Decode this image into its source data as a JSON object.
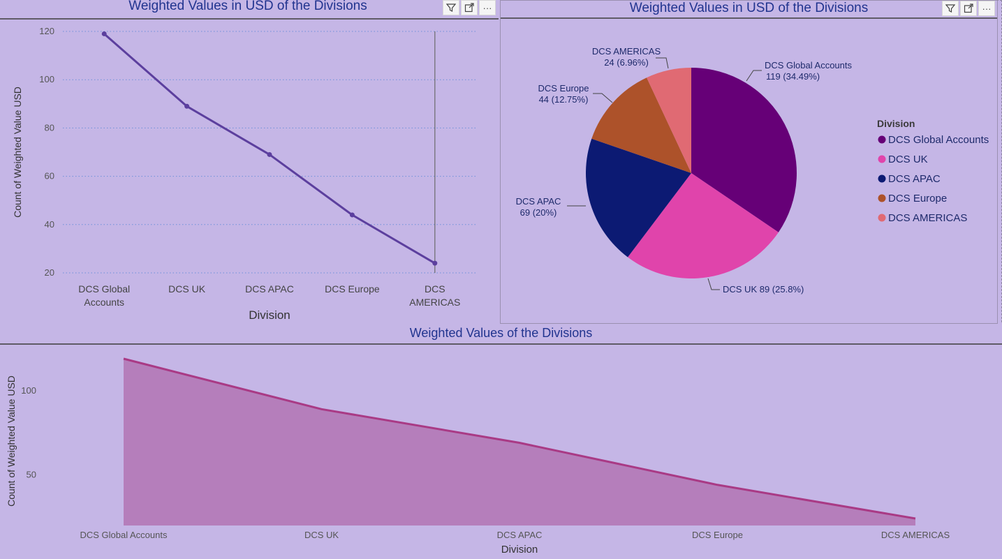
{
  "panels": {
    "line": {
      "title": "Weighted Values in USD of the Divisions",
      "toolbar": {
        "filter_icon": "filter-icon",
        "focus_icon": "focus-mode-icon",
        "more_icon": "more-options-icon",
        "more_label": "···"
      }
    },
    "pie": {
      "title": "Weighted Values in USD of the Divisions",
      "toolbar": {
        "filter_icon": "filter-icon",
        "focus_icon": "focus-mode-icon",
        "more_icon": "more-options-icon",
        "more_label": "···"
      }
    },
    "area": {
      "title": "Weighted Values of the Divisions"
    }
  },
  "chart_data": [
    {
      "type": "line",
      "title": "Weighted Values in USD of the Divisions",
      "xlabel": "Division",
      "ylabel": "Count of Weighted Value USD",
      "categories": [
        [
          "DCS Global",
          "Accounts"
        ],
        [
          "DCS UK"
        ],
        [
          "DCS APAC"
        ],
        [
          "DCS Europe"
        ],
        [
          "DCS",
          "AMERICAS"
        ]
      ],
      "values": [
        119,
        89,
        69,
        44,
        24
      ],
      "yticks": [
        20,
        40,
        60,
        80,
        100,
        120
      ],
      "ylim": [
        20,
        120
      ],
      "grid": true,
      "color": "#5c3f9e"
    },
    {
      "type": "pie",
      "title": "Weighted Values in USD of the Divisions",
      "legend_title": "Division",
      "legend_position": "right",
      "slices": [
        {
          "name": "DCS Global Accounts",
          "value": 119,
          "label_lines": [
            "DCS Global Accounts",
            "119 (34.49%)"
          ],
          "color": "#660077"
        },
        {
          "name": "DCS UK",
          "value": 89,
          "label_lines": [
            "DCS UK 89 (25.8%)"
          ],
          "color": "#e044ab"
        },
        {
          "name": "DCS APAC",
          "value": 69,
          "label_lines": [
            "DCS APAC",
            "69 (20%)"
          ],
          "color": "#0c1a73"
        },
        {
          "name": "DCS Europe",
          "value": 44,
          "label_lines": [
            "DCS Europe",
            "44 (12.75%)"
          ],
          "color": "#ad522a"
        },
        {
          "name": "DCS AMERICAS",
          "value": 24,
          "label_lines": [
            "DCS AMERICAS",
            "24 (6.96%)"
          ],
          "color": "#e06a73"
        }
      ]
    },
    {
      "type": "area",
      "title": "Weighted Values of the Divisions",
      "xlabel": "Division",
      "ylabel": "Count of Weighted Value USD",
      "categories": [
        "DCS Global Accounts",
        "DCS UK",
        "DCS APAC",
        "DCS Europe",
        "DCS AMERICAS"
      ],
      "values": [
        119,
        89,
        69,
        44,
        24
      ],
      "yticks": [
        50,
        100
      ],
      "line_color": "#a93a85",
      "fill_color": "#b57ebb"
    }
  ]
}
